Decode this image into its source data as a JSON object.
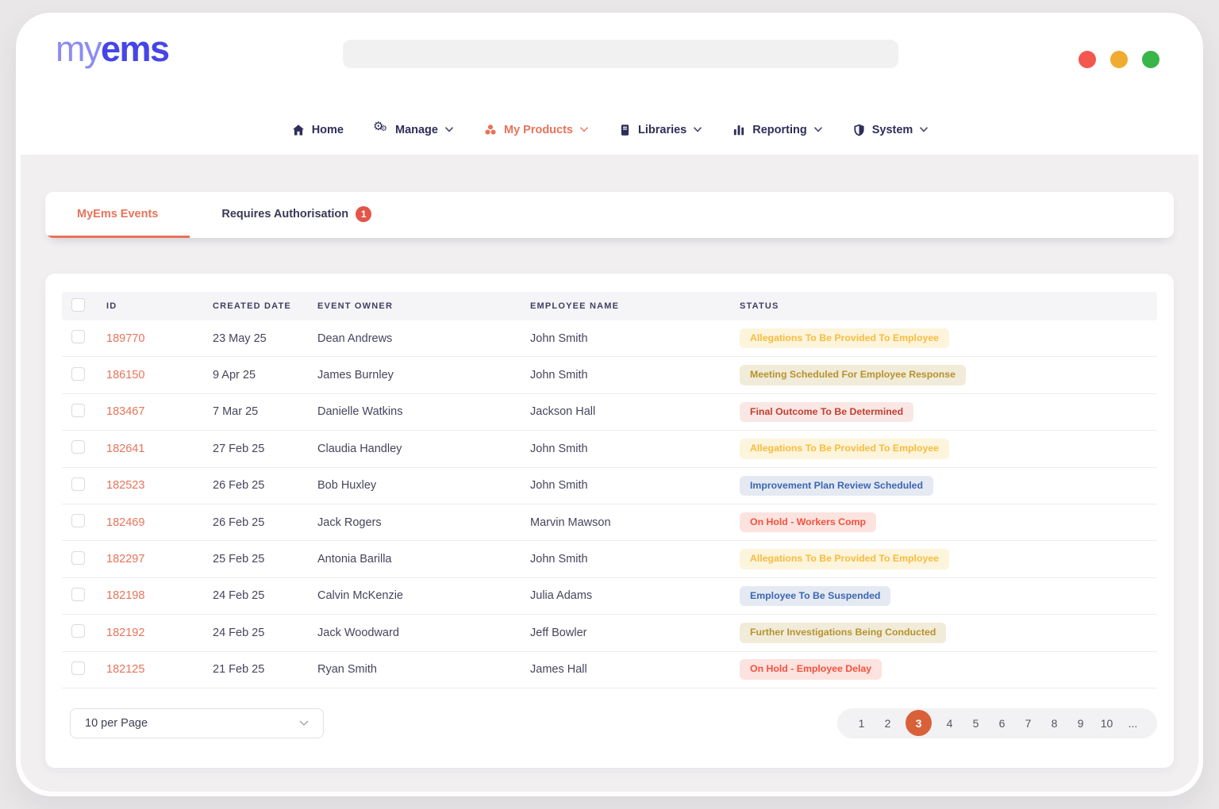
{
  "header": {
    "logo_prefix": "my",
    "logo_suffix": "ems",
    "search_value": "",
    "traffic_lights": [
      {
        "name": "close",
        "color": "#f4574e"
      },
      {
        "name": "minimize",
        "color": "#f0ac31"
      },
      {
        "name": "maximize",
        "color": "#39b54a"
      }
    ]
  },
  "nav": {
    "items": [
      {
        "label": "Home",
        "icon": "home-icon",
        "active": false,
        "has_dropdown": false
      },
      {
        "label": "Manage",
        "icon": "gears-icon",
        "active": false,
        "has_dropdown": true
      },
      {
        "label": "My Products",
        "icon": "products-icon",
        "active": true,
        "has_dropdown": true
      },
      {
        "label": "Libraries",
        "icon": "book-icon",
        "active": false,
        "has_dropdown": true
      },
      {
        "label": "Reporting",
        "icon": "bar-chart-icon",
        "active": false,
        "has_dropdown": true
      },
      {
        "label": "System",
        "icon": "shield-icon",
        "active": false,
        "has_dropdown": true
      }
    ]
  },
  "tabs": [
    {
      "label": "MyEms Events",
      "active": true,
      "badge": null
    },
    {
      "label": "Requires Authorisation",
      "active": false,
      "badge": "1"
    }
  ],
  "table": {
    "headers": [
      "ID",
      "Created Date",
      "Event Owner",
      "Employee Name",
      "Status"
    ],
    "rows": [
      {
        "id": "189770",
        "created": "23 May 25",
        "owner": "Dean Andrews",
        "employee": "John Smith",
        "status": "Allegations To Be Provided To Employee",
        "status_type": "amber"
      },
      {
        "id": "186150",
        "created": "9 Apr 25",
        "owner": "James Burnley",
        "employee": "John Smith",
        "status": "Meeting Scheduled For Employee Response",
        "status_type": "khaki"
      },
      {
        "id": "183467",
        "created": "7 Mar 25",
        "owner": "Danielle Watkins",
        "employee": "Jackson Hall",
        "status": "Final Outcome To Be Determined",
        "status_type": "maroon"
      },
      {
        "id": "182641",
        "created": "27 Feb 25",
        "owner": "Claudia Handley",
        "employee": "John Smith",
        "status": "Allegations To Be Provided To Employee",
        "status_type": "amber"
      },
      {
        "id": "182523",
        "created": "26 Feb 25",
        "owner": "Bob Huxley",
        "employee": "John Smith",
        "status": "Improvement Plan Review Scheduled",
        "status_type": "blue"
      },
      {
        "id": "182469",
        "created": "26 Feb 25",
        "owner": "Jack Rogers",
        "employee": "Marvin Mawson",
        "status": "On Hold - Workers Comp",
        "status_type": "red"
      },
      {
        "id": "182297",
        "created": "25 Feb 25",
        "owner": "Antonia Barilla",
        "employee": "John Smith",
        "status": "Allegations To Be Provided To Employee",
        "status_type": "amber"
      },
      {
        "id": "182198",
        "created": "24 Feb 25",
        "owner": "Calvin McKenzie",
        "employee": "Julia Adams",
        "status": "Employee To Be Suspended",
        "status_type": "blue"
      },
      {
        "id": "182192",
        "created": "24 Feb 25",
        "owner": "Jack Woodward",
        "employee": "Jeff Bowler",
        "status": "Further Investigations Being Conducted",
        "status_type": "khaki"
      },
      {
        "id": "182125",
        "created": "21 Feb 25",
        "owner": "Ryan Smith",
        "employee": "James Hall",
        "status": "On Hold - Employee Delay",
        "status_type": "red"
      }
    ]
  },
  "status_styles": {
    "amber": {
      "bg": "#fdf4dc",
      "text": "#f8bc3d"
    },
    "khaki": {
      "bg": "#f1ebd9",
      "text": "#b6932e"
    },
    "maroon": {
      "bg": "#f8e7e4",
      "text": "#c23e31"
    },
    "blue": {
      "bg": "#e5e9f2",
      "text": "#3a67b2"
    },
    "red": {
      "bg": "#fce3df",
      "text": "#f5503c"
    }
  },
  "pagination": {
    "per_page_label": "10 per Page",
    "pages": [
      "1",
      "2",
      "3",
      "4",
      "5",
      "6",
      "7",
      "8",
      "9",
      "10",
      "..."
    ],
    "active_page": "3",
    "active_color": "#d8613a"
  },
  "colors": {
    "accent_orange": "#e8735a",
    "nav_text": "#2e2e5a",
    "tab_badge": "#e25649"
  }
}
